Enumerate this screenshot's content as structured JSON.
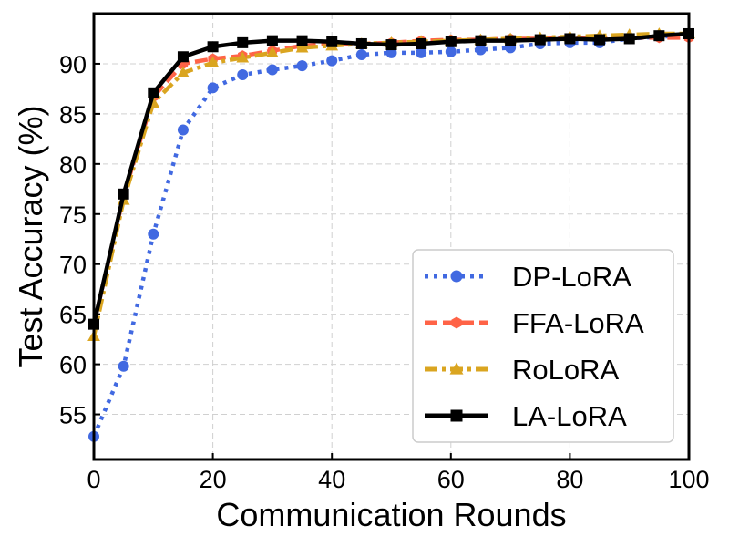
{
  "chart_data": {
    "type": "line",
    "title": "",
    "xlabel": "Communication Rounds",
    "ylabel": "Test Accuracy (%)",
    "xlim": [
      0,
      100
    ],
    "ylim": [
      50.5,
      95
    ],
    "xticks": [
      0,
      20,
      40,
      60,
      80,
      100
    ],
    "yticks": [
      55,
      60,
      65,
      70,
      75,
      80,
      85,
      90
    ],
    "grid": true,
    "legend_position": "bottom-right",
    "x": [
      0,
      5,
      10,
      15,
      20,
      25,
      30,
      35,
      40,
      45,
      50,
      55,
      60,
      65,
      70,
      75,
      80,
      85,
      90,
      95,
      100
    ],
    "series": [
      {
        "name": "DP-LoRA",
        "color": "#4169e1",
        "line_style": "dotted",
        "marker": "circle",
        "values": [
          52.8,
          59.8,
          73.0,
          83.4,
          87.6,
          88.9,
          89.4,
          89.8,
          90.3,
          90.9,
          91.1,
          91.1,
          91.2,
          91.4,
          91.6,
          92.0,
          92.1,
          92.1,
          92.5,
          92.7,
          92.8
        ]
      },
      {
        "name": "FFA-LoRA",
        "color": "#ff6347",
        "line_style": "dashed",
        "marker": "hexagon",
        "values": [
          64.0,
          76.8,
          86.7,
          90.0,
          90.5,
          90.8,
          91.3,
          91.8,
          92.0,
          92.0,
          92.1,
          92.3,
          92.4,
          92.4,
          92.5,
          92.5,
          92.6,
          92.5,
          92.6,
          92.6,
          92.6
        ]
      },
      {
        "name": "RoLoRA",
        "color": "#daa520",
        "line_style": "dashdot",
        "marker": "triangle",
        "values": [
          62.8,
          76.4,
          86.1,
          89.1,
          90.1,
          90.6,
          91.1,
          91.6,
          91.8,
          92.0,
          92.1,
          92.2,
          92.3,
          92.4,
          92.5,
          92.6,
          92.7,
          92.8,
          92.9,
          93.0,
          93.0
        ]
      },
      {
        "name": "LA-LoRA",
        "color": "#000000",
        "line_style": "solid",
        "marker": "square",
        "values": [
          64.0,
          77.0,
          87.1,
          90.7,
          91.7,
          92.1,
          92.3,
          92.3,
          92.2,
          92.0,
          91.9,
          92.0,
          92.2,
          92.3,
          92.3,
          92.4,
          92.5,
          92.4,
          92.5,
          92.8,
          93.0
        ]
      }
    ]
  }
}
